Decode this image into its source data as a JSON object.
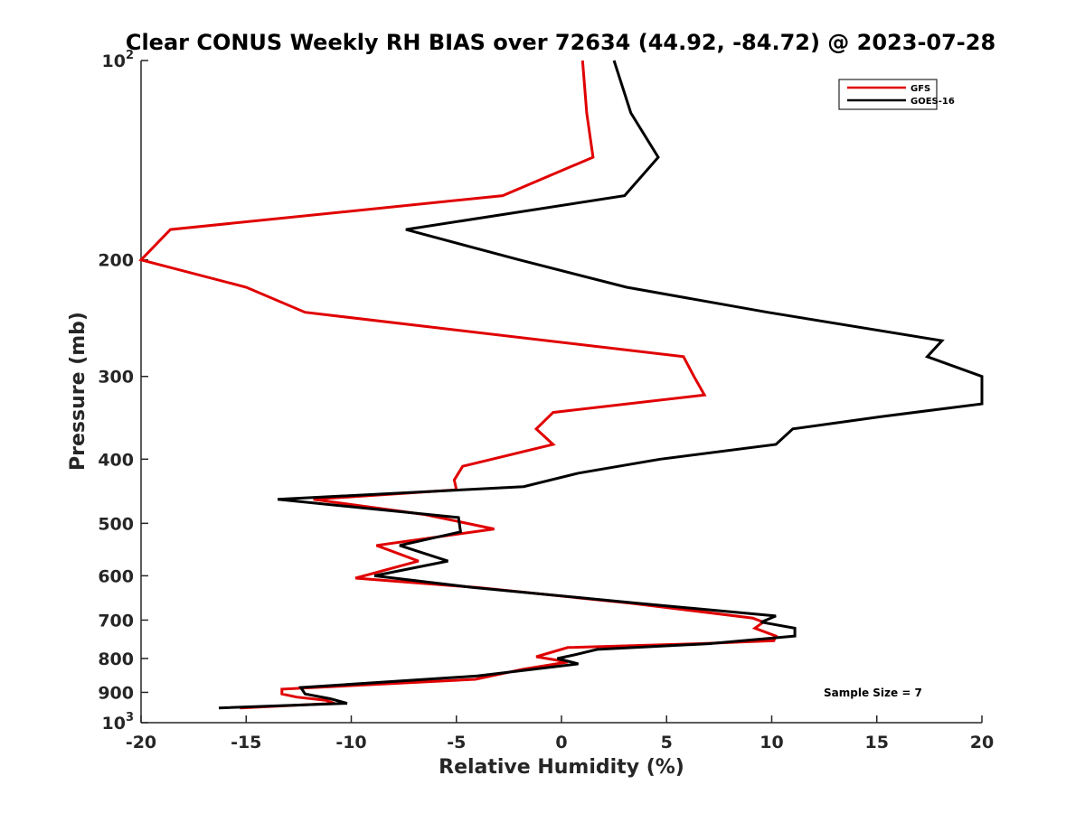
{
  "chart_data": {
    "type": "line",
    "title": "Clear CONUS Weekly RH BIAS over 72634 (44.92, -84.72) @ 2023-07-28",
    "xlabel": "Relative Humidity (%)",
    "ylabel": "Pressure (mb)",
    "xlim": [
      -20,
      20
    ],
    "ylim": [
      100,
      1000
    ],
    "yscale": "log",
    "y_reversed": true,
    "x_ticks": [
      -20,
      -15,
      -10,
      -5,
      0,
      5,
      10,
      15,
      20
    ],
    "x_tick_labels": [
      "-20",
      "-15",
      "-10",
      "-5",
      "0",
      "5",
      "10",
      "15",
      "20"
    ],
    "y_ticks": [
      {
        "value": 100,
        "base": "10",
        "exp": "2"
      },
      {
        "value": 200,
        "label": "200"
      },
      {
        "value": 300,
        "label": "300"
      },
      {
        "value": 400,
        "label": "400"
      },
      {
        "value": 500,
        "label": "500"
      },
      {
        "value": 600,
        "label": "600"
      },
      {
        "value": 700,
        "label": "700"
      },
      {
        "value": 800,
        "label": "800"
      },
      {
        "value": 900,
        "label": "900"
      },
      {
        "value": 1000,
        "base": "10",
        "exp": "3"
      }
    ],
    "legend_position": "top-right",
    "annotation": "Sample Size = 7",
    "series": [
      {
        "name": "GFS",
        "color": "#e00000",
        "x": [
          1.0,
          1.2,
          1.5,
          -2.8,
          -18.6,
          -20.0,
          -15.0,
          -12.2,
          5.8,
          6.3,
          6.8,
          -0.4,
          -1.2,
          -0.4,
          -4.7,
          -5.1,
          -5.0,
          -11.8,
          -6.5,
          -3.2,
          -8.8,
          -6.8,
          -9.8,
          -4.0,
          3.3,
          9.1,
          9.6,
          9.2,
          10.2,
          10.1,
          6.5,
          0.3,
          -1.2,
          0.3,
          -1.8,
          -4.1,
          -13.3,
          -13.3,
          -12.6,
          -11.2,
          -10.8,
          -15.3
        ],
        "y": [
          100,
          120,
          140,
          160,
          180,
          200,
          220,
          240,
          280,
          300,
          320,
          340,
          360,
          380,
          410,
          430,
          445,
          460,
          485,
          510,
          540,
          570,
          605,
          625,
          660,
          695,
          705,
          720,
          740,
          752,
          760,
          770,
          795,
          810,
          830,
          860,
          890,
          905,
          915,
          925,
          935,
          950
        ]
      },
      {
        "name": "GOES-16",
        "color": "#000000",
        "x": [
          2.5,
          3.3,
          4.6,
          3.0,
          -7.4,
          -2.0,
          3.1,
          9.8,
          18.1,
          17.4,
          20.0,
          20.0,
          15.2,
          11.0,
          10.2,
          4.7,
          0.8,
          -1.8,
          -13.5,
          -4.9,
          -4.8,
          -7.7,
          -5.4,
          -8.9,
          -4.2,
          3.6,
          10.2,
          9.5,
          11.1,
          11.1,
          7.0,
          1.7,
          0.6,
          -0.2,
          0.8,
          -4.0,
          -12.4,
          -12.2,
          -11.0,
          -10.2,
          -16.3
        ],
        "y": [
          100,
          120,
          140,
          160,
          180,
          200,
          220,
          240,
          265,
          280,
          300,
          330,
          345,
          360,
          380,
          400,
          420,
          440,
          460,
          490,
          515,
          540,
          570,
          600,
          625,
          660,
          690,
          705,
          720,
          740,
          760,
          775,
          790,
          800,
          815,
          850,
          885,
          905,
          920,
          935,
          950
        ]
      }
    ]
  }
}
